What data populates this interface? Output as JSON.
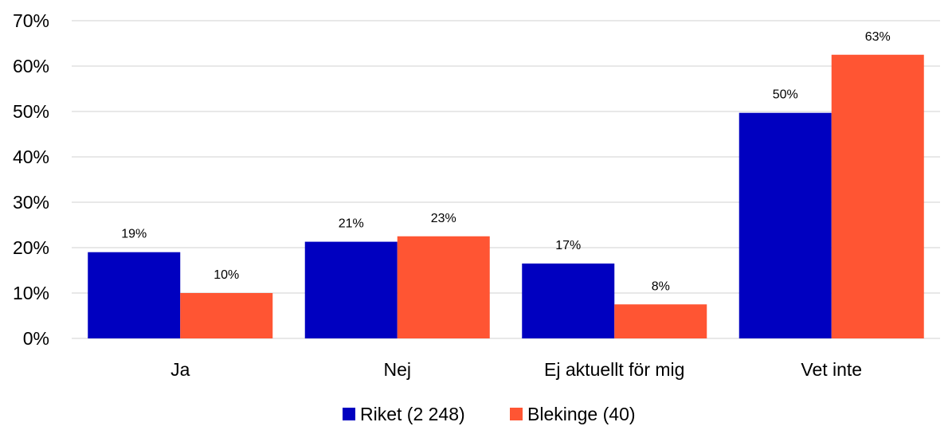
{
  "chart_data": {
    "type": "bar",
    "categories": [
      "Ja",
      "Nej",
      "Ej aktuellt för mig",
      "Vet inte"
    ],
    "series": [
      {
        "name": "Riket (2 248)",
        "color": "#0000c0",
        "values": [
          19,
          21.3,
          16.5,
          49.7
        ],
        "labels": [
          "19%",
          "21%",
          "17%",
          "50%"
        ]
      },
      {
        "name": "Blekinge (40)",
        "color": "#ff5533",
        "values": [
          10,
          22.5,
          7.5,
          62.5
        ],
        "labels": [
          "10%",
          "23%",
          "8%",
          "63%"
        ]
      }
    ],
    "yticks": [
      "0%",
      "10%",
      "20%",
      "30%",
      "40%",
      "50%",
      "60%",
      "70%"
    ],
    "ylim": [
      0,
      70
    ],
    "grid": true,
    "legend": "bottom-center"
  }
}
